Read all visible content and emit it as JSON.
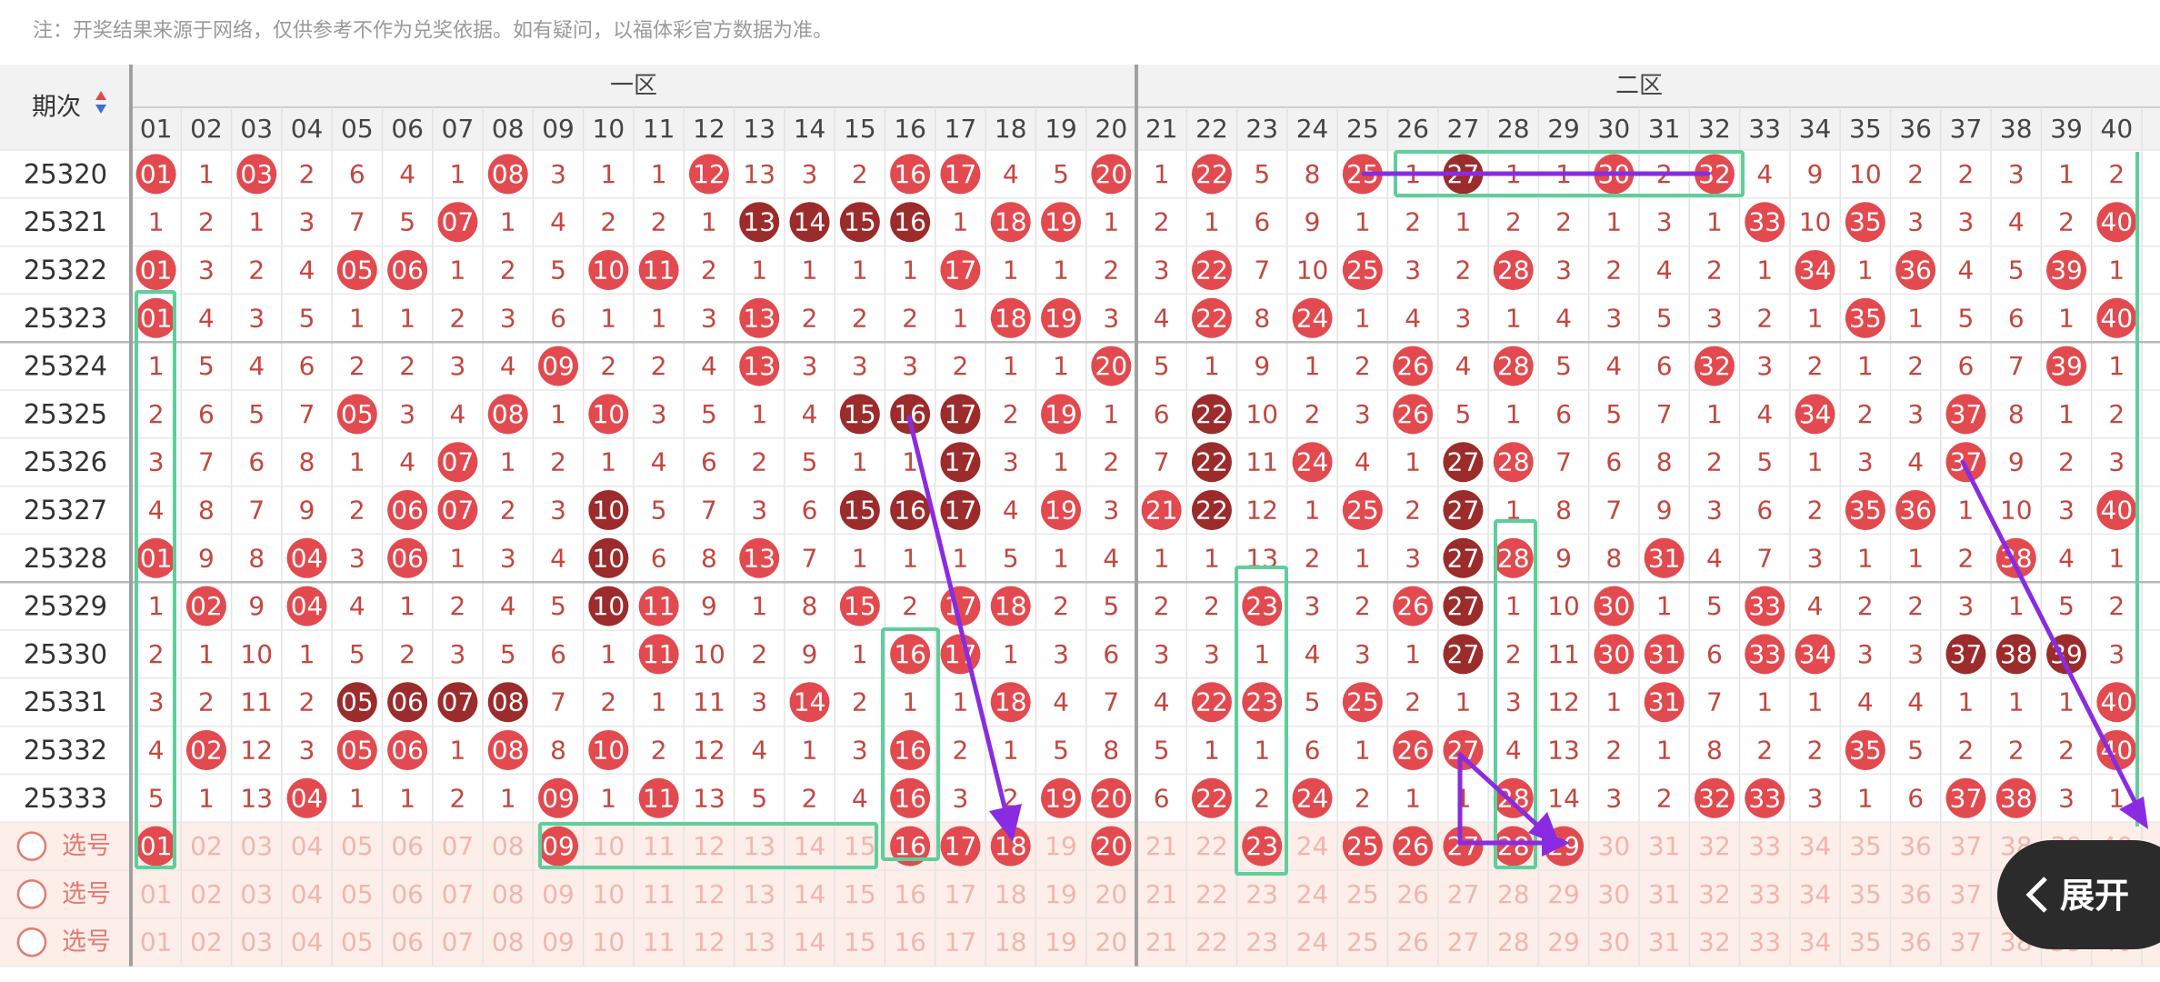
{
  "note": "注：开奖结果来源于网络，仅供参考不作为兑奖依据。如有疑问，以福体彩官方数据为准。",
  "header": {
    "period": "期次",
    "zones": [
      "一区",
      "二区"
    ],
    "columns": [
      "01",
      "02",
      "03",
      "04",
      "05",
      "06",
      "07",
      "08",
      "09",
      "10",
      "11",
      "12",
      "13",
      "14",
      "15",
      "16",
      "17",
      "18",
      "19",
      "20",
      "21",
      "22",
      "23",
      "24",
      "25",
      "26",
      "27",
      "28",
      "29",
      "30",
      "31",
      "32",
      "33",
      "34",
      "35",
      "36",
      "37",
      "38",
      "39",
      "40"
    ]
  },
  "rows": [
    {
      "period": "25320",
      "cells": [
        "01",
        "1",
        "03",
        "2",
        "6",
        "4",
        "1",
        "08",
        "3",
        "1",
        "1",
        "12",
        "13",
        "3",
        "2",
        "16",
        "17",
        "4",
        "5",
        "20",
        "1",
        "22",
        "5",
        "8",
        "25",
        "1",
        "27",
        "1",
        "1",
        "30",
        "2",
        "32",
        "4",
        "9",
        "10",
        "2",
        "2",
        "3",
        "1",
        "2"
      ],
      "hits": [
        "01",
        "03",
        "08",
        "12",
        "16",
        "17",
        "20",
        "22",
        "25",
        "27",
        "30",
        "32"
      ],
      "dark": [
        "27"
      ]
    },
    {
      "period": "25321",
      "cells": [
        "1",
        "2",
        "1",
        "3",
        "7",
        "5",
        "07",
        "1",
        "4",
        "2",
        "2",
        "1",
        "13",
        "14",
        "15",
        "16",
        "1",
        "18",
        "19",
        "1",
        "2",
        "1",
        "6",
        "9",
        "1",
        "2",
        "1",
        "2",
        "2",
        "1",
        "3",
        "1",
        "33",
        "10",
        "35",
        "3",
        "3",
        "4",
        "2",
        "40"
      ],
      "hits": [
        "07",
        "13",
        "14",
        "15",
        "16",
        "18",
        "19",
        "33",
        "35",
        "40"
      ],
      "dark": [
        "13",
        "14",
        "15",
        "16"
      ]
    },
    {
      "period": "25322",
      "cells": [
        "01",
        "3",
        "2",
        "4",
        "05",
        "06",
        "1",
        "2",
        "5",
        "10",
        "11",
        "2",
        "1",
        "1",
        "1",
        "1",
        "17",
        "1",
        "1",
        "2",
        "3",
        "22",
        "7",
        "10",
        "25",
        "3",
        "2",
        "28",
        "3",
        "2",
        "4",
        "2",
        "1",
        "34",
        "1",
        "36",
        "4",
        "5",
        "39",
        "1"
      ],
      "hits": [
        "01",
        "05",
        "06",
        "10",
        "11",
        "17",
        "22",
        "25",
        "28",
        "34",
        "36",
        "39"
      ],
      "dark": []
    },
    {
      "period": "25323",
      "cells": [
        "01",
        "4",
        "3",
        "5",
        "1",
        "1",
        "2",
        "3",
        "6",
        "1",
        "1",
        "3",
        "13",
        "2",
        "2",
        "2",
        "1",
        "18",
        "19",
        "3",
        "4",
        "22",
        "8",
        "24",
        "1",
        "4",
        "3",
        "1",
        "4",
        "3",
        "5",
        "3",
        "2",
        "1",
        "35",
        "1",
        "5",
        "6",
        "1",
        "40"
      ],
      "hits": [
        "01",
        "13",
        "18",
        "19",
        "22",
        "24",
        "35",
        "40"
      ],
      "dark": []
    },
    {
      "period": "25324",
      "cells": [
        "1",
        "5",
        "4",
        "6",
        "2",
        "2",
        "3",
        "4",
        "09",
        "2",
        "2",
        "4",
        "13",
        "3",
        "3",
        "3",
        "2",
        "1",
        "1",
        "20",
        "5",
        "1",
        "9",
        "1",
        "2",
        "26",
        "4",
        "28",
        "5",
        "4",
        "6",
        "32",
        "3",
        "2",
        "1",
        "2",
        "6",
        "7",
        "39",
        "1"
      ],
      "hits": [
        "09",
        "13",
        "20",
        "26",
        "28",
        "32",
        "39"
      ],
      "dark": []
    },
    {
      "period": "25325",
      "cells": [
        "2",
        "6",
        "5",
        "7",
        "05",
        "3",
        "4",
        "08",
        "1",
        "10",
        "3",
        "5",
        "1",
        "4",
        "15",
        "16",
        "17",
        "2",
        "19",
        "1",
        "6",
        "22",
        "10",
        "2",
        "3",
        "26",
        "5",
        "1",
        "6",
        "5",
        "7",
        "1",
        "4",
        "34",
        "2",
        "3",
        "37",
        "8",
        "1",
        "2"
      ],
      "hits": [
        "05",
        "08",
        "10",
        "15",
        "16",
        "17",
        "19",
        "22",
        "26",
        "34",
        "37"
      ],
      "dark": [
        "15",
        "16",
        "17",
        "22"
      ]
    },
    {
      "period": "25326",
      "cells": [
        "3",
        "7",
        "6",
        "8",
        "1",
        "4",
        "07",
        "1",
        "2",
        "1",
        "4",
        "6",
        "2",
        "5",
        "1",
        "1",
        "17",
        "3",
        "1",
        "2",
        "7",
        "22",
        "11",
        "24",
        "4",
        "1",
        "27",
        "28",
        "7",
        "6",
        "8",
        "2",
        "5",
        "1",
        "3",
        "4",
        "37",
        "9",
        "2",
        "3"
      ],
      "hits": [
        "07",
        "17",
        "22",
        "24",
        "27",
        "28",
        "37"
      ],
      "dark": [
        "17",
        "22",
        "27"
      ]
    },
    {
      "period": "25327",
      "cells": [
        "4",
        "8",
        "7",
        "9",
        "2",
        "06",
        "07",
        "2",
        "3",
        "10",
        "5",
        "7",
        "3",
        "6",
        "15",
        "16",
        "17",
        "4",
        "19",
        "3",
        "21",
        "22",
        "12",
        "1",
        "25",
        "2",
        "27",
        "1",
        "8",
        "7",
        "9",
        "3",
        "6",
        "2",
        "35",
        "36",
        "1",
        "10",
        "3",
        "40"
      ],
      "hits": [
        "06",
        "07",
        "10",
        "15",
        "16",
        "17",
        "19",
        "21",
        "22",
        "25",
        "27",
        "35",
        "36",
        "40"
      ],
      "dark": [
        "10",
        "15",
        "16",
        "17",
        "22",
        "27"
      ]
    },
    {
      "period": "25328",
      "cells": [
        "01",
        "9",
        "8",
        "04",
        "3",
        "06",
        "1",
        "3",
        "4",
        "10",
        "6",
        "8",
        "13",
        "7",
        "1",
        "1",
        "1",
        "5",
        "1",
        "4",
        "1",
        "1",
        "13",
        "2",
        "1",
        "3",
        "27",
        "28",
        "9",
        "8",
        "31",
        "4",
        "7",
        "3",
        "1",
        "1",
        "2",
        "38",
        "4",
        "1"
      ],
      "hits": [
        "01",
        "04",
        "06",
        "10",
        "13",
        "27",
        "28",
        "31",
        "38"
      ],
      "dark": [
        "10",
        "27"
      ]
    },
    {
      "period": "25329",
      "cells": [
        "1",
        "02",
        "9",
        "04",
        "4",
        "1",
        "2",
        "4",
        "5",
        "10",
        "11",
        "9",
        "1",
        "8",
        "15",
        "2",
        "17",
        "18",
        "2",
        "5",
        "2",
        "2",
        "23",
        "3",
        "2",
        "26",
        "27",
        "1",
        "10",
        "30",
        "1",
        "5",
        "33",
        "4",
        "2",
        "2",
        "3",
        "1",
        "5",
        "2"
      ],
      "hits": [
        "02",
        "04",
        "10",
        "11",
        "15",
        "17",
        "18",
        "23",
        "26",
        "27",
        "30",
        "33"
      ],
      "dark": [
        "10",
        "27"
      ]
    },
    {
      "period": "25330",
      "cells": [
        "2",
        "1",
        "10",
        "1",
        "5",
        "2",
        "3",
        "5",
        "6",
        "1",
        "11",
        "10",
        "2",
        "9",
        "1",
        "16",
        "17",
        "1",
        "3",
        "6",
        "3",
        "3",
        "1",
        "4",
        "3",
        "1",
        "27",
        "2",
        "11",
        "30",
        "31",
        "6",
        "33",
        "34",
        "3",
        "3",
        "37",
        "38",
        "39",
        "3"
      ],
      "hits": [
        "11",
        "16",
        "17",
        "27",
        "30",
        "31",
        "33",
        "34",
        "37",
        "38",
        "39"
      ],
      "dark": [
        "27",
        "37",
        "38",
        "39"
      ]
    },
    {
      "period": "25331",
      "cells": [
        "3",
        "2",
        "11",
        "2",
        "05",
        "06",
        "07",
        "08",
        "7",
        "2",
        "1",
        "11",
        "3",
        "14",
        "2",
        "1",
        "1",
        "18",
        "4",
        "7",
        "4",
        "22",
        "23",
        "5",
        "25",
        "2",
        "1",
        "3",
        "12",
        "1",
        "31",
        "7",
        "1",
        "1",
        "4",
        "4",
        "1",
        "1",
        "1",
        "40"
      ],
      "hits": [
        "05",
        "06",
        "07",
        "08",
        "14",
        "18",
        "22",
        "23",
        "25",
        "31",
        "40"
      ],
      "dark": [
        "05",
        "06",
        "07",
        "08"
      ]
    },
    {
      "period": "25332",
      "cells": [
        "4",
        "02",
        "12",
        "3",
        "05",
        "06",
        "1",
        "08",
        "8",
        "10",
        "2",
        "12",
        "4",
        "1",
        "3",
        "16",
        "2",
        "1",
        "5",
        "8",
        "5",
        "1",
        "1",
        "6",
        "1",
        "26",
        "27",
        "4",
        "13",
        "2",
        "1",
        "8",
        "2",
        "2",
        "35",
        "5",
        "2",
        "2",
        "2",
        "40"
      ],
      "hits": [
        "02",
        "05",
        "06",
        "08",
        "10",
        "16",
        "26",
        "27",
        "35",
        "40"
      ],
      "dark": []
    },
    {
      "period": "25333",
      "cells": [
        "5",
        "1",
        "13",
        "04",
        "1",
        "1",
        "2",
        "1",
        "09",
        "1",
        "11",
        "13",
        "5",
        "2",
        "4",
        "16",
        "3",
        "2",
        "19",
        "20",
        "6",
        "22",
        "2",
        "24",
        "2",
        "1",
        "1",
        "28",
        "14",
        "3",
        "2",
        "32",
        "33",
        "3",
        "1",
        "6",
        "37",
        "38",
        "3",
        "1"
      ],
      "hits": [
        "04",
        "09",
        "11",
        "16",
        "19",
        "20",
        "22",
        "24",
        "28",
        "32",
        "33",
        "37",
        "38"
      ],
      "dark": []
    }
  ],
  "select_rows": [
    {
      "label": "选号",
      "selected": [
        "01",
        "09",
        "16",
        "17",
        "18",
        "20",
        "23",
        "25",
        "26",
        "27",
        "28",
        "29"
      ]
    },
    {
      "label": "选号",
      "selected": []
    },
    {
      "label": "选号",
      "selected": []
    }
  ],
  "expand_button": "展开"
}
